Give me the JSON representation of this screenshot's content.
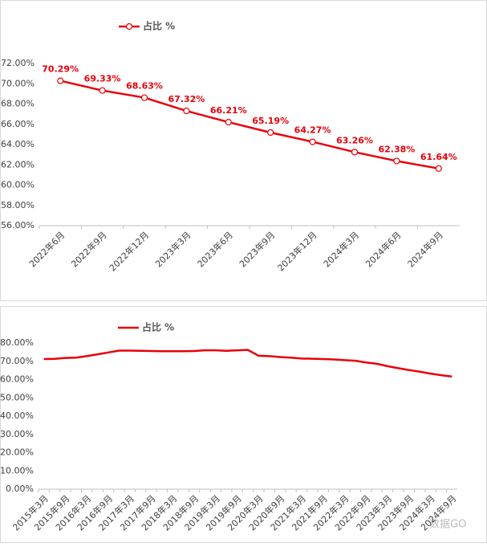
{
  "chart_data": [
    {
      "type": "line",
      "categories": [
        "2022年6月",
        "2022年9月",
        "2022年12月",
        "2023年3月",
        "2023年6月",
        "2023年9月",
        "2023年12月",
        "2024年3月",
        "2024年6月",
        "2024年9月"
      ],
      "series": [
        {
          "name": "占比 %",
          "color": "#e8000b",
          "marker": "circle",
          "values": [
            70.29,
            69.33,
            68.63,
            67.32,
            66.21,
            65.19,
            64.27,
            63.26,
            62.38,
            61.64
          ],
          "value_labels": [
            "70.29%",
            "69.33%",
            "68.63%",
            "67.32%",
            "66.21%",
            "65.19%",
            "64.27%",
            "63.26%",
            "62.38%",
            "61.64%"
          ]
        }
      ],
      "ylim": [
        56,
        72
      ],
      "yticks": [
        {
          "value": 56,
          "label": "56.00%"
        },
        {
          "value": 58,
          "label": "58.00%"
        },
        {
          "value": 60,
          "label": "60.00%"
        },
        {
          "value": 62,
          "label": "62.00%"
        },
        {
          "value": 64,
          "label": "64.00%"
        },
        {
          "value": 66,
          "label": "66.00%"
        },
        {
          "value": 68,
          "label": "68.00%"
        },
        {
          "value": 70,
          "label": "70.00%"
        },
        {
          "value": 72,
          "label": "72.00%"
        }
      ],
      "grid": false,
      "legend": "top-left"
    },
    {
      "type": "line",
      "categories": [
        "2015年3月",
        null,
        "2015年9月",
        null,
        "2016年3月",
        null,
        "2016年9月",
        null,
        "2017年3月",
        null,
        "2017年9月",
        null,
        "2018年3月",
        null,
        "2018年9月",
        null,
        "2019年3月",
        null,
        "2019年9月",
        null,
        "2020年3月",
        null,
        "2020年9月",
        null,
        "2021年3月",
        null,
        "2021年9月",
        null,
        "2022年3月",
        null,
        "2022年9月",
        null,
        "2023年3月",
        null,
        "2023年9月",
        null,
        "2024年3月",
        null,
        "2024年9月"
      ],
      "series": [
        {
          "name": "占比 %",
          "color": "#e8000b",
          "values": [
            71.2,
            71.3,
            71.8,
            72.0,
            72.8,
            73.8,
            74.8,
            75.8,
            75.8,
            75.7,
            75.6,
            75.5,
            75.5,
            75.5,
            75.6,
            76.0,
            76.0,
            75.7,
            76.0,
            76.2,
            73.0,
            72.8,
            72.3,
            72.0,
            71.5,
            71.4,
            71.2,
            71.0,
            70.6,
            70.29,
            69.33,
            68.63,
            67.32,
            66.21,
            65.19,
            64.27,
            63.26,
            62.38,
            61.64
          ]
        }
      ],
      "ylim": [
        0,
        80
      ],
      "yticks": [
        {
          "value": 0,
          "label": "0.00%"
        },
        {
          "value": 10,
          "label": "10.00%"
        },
        {
          "value": 20,
          "label": "20.00%"
        },
        {
          "value": 30,
          "label": "30.00%"
        },
        {
          "value": 40,
          "label": "40.00%"
        },
        {
          "value": 50,
          "label": "50.00%"
        },
        {
          "value": 60,
          "label": "60.00%"
        },
        {
          "value": 70,
          "label": "70.00%"
        },
        {
          "value": 80,
          "label": "80.00%"
        }
      ],
      "grid": false,
      "legend": "top-left"
    }
  ],
  "watermark": "数据GO"
}
